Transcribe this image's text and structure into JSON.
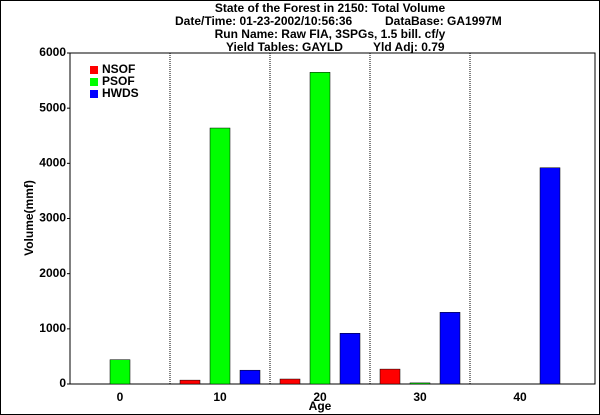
{
  "chart_data": {
    "type": "bar",
    "title": "State of the Forest in 2150:  Total Volume",
    "date_time": "Date/Time: 01-23-2002/10:56:36",
    "database": "DataBase: GA1997M",
    "run_name": "Run Name: Raw FIA, 3SPGs, 1.5 bill. cf/y",
    "yield_tables": "Yield Tables: GAYLD",
    "yld_adj": "Yld Adj: 0.79",
    "x_label": "Age",
    "y_label": "Volume(mmf)",
    "categories": [
      "0",
      "10",
      "20",
      "30",
      "40"
    ],
    "series": [
      {
        "name": "NSOF",
        "color": "#ff0000",
        "values": [
          0,
          70,
          90,
          270,
          0
        ]
      },
      {
        "name": "PSOF",
        "color": "#00ff00",
        "values": [
          440,
          4640,
          5650,
          20,
          0
        ]
      },
      {
        "name": "HWDS",
        "color": "#0000ff",
        "values": [
          0,
          250,
          920,
          1300,
          3920
        ]
      }
    ],
    "ylim": [
      0,
      6000
    ],
    "yticks": [
      0,
      1000,
      2000,
      3000,
      4000,
      5000,
      6000
    ],
    "legend": "upper-left"
  }
}
